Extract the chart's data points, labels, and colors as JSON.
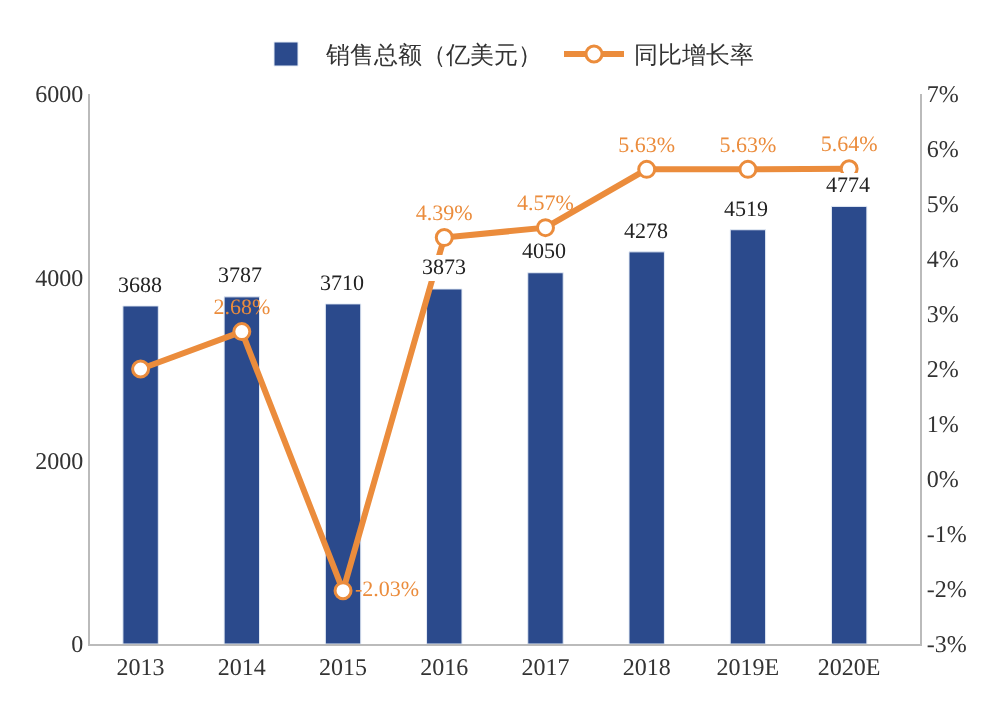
{
  "chart_data": {
    "type": "bar",
    "categories": [
      "2013",
      "2014",
      "2015",
      "2016",
      "2017",
      "2018",
      "2019E",
      "2020E"
    ],
    "series": [
      {
        "name": "销售总额（亿美元）",
        "color": "#2b4a8c",
        "values": [
          3688,
          3787,
          3710,
          3873,
          4050,
          4278,
          4519,
          4774
        ],
        "value_labels": [
          "3688",
          "3787",
          "3710",
          "3873",
          "4050",
          "4278",
          "4519",
          "4774"
        ]
      },
      {
        "name": "同比增长率",
        "type": "line",
        "axis": "y2",
        "color": "#eb8c3c",
        "marker": "circle",
        "values": [
          2.0,
          2.68,
          -2.03,
          4.39,
          4.57,
          5.63,
          5.63,
          5.64
        ],
        "value_labels": [
          null,
          "2.68%",
          "-2.03%",
          "4.39%",
          "4.57%",
          "5.63%",
          "5.63%",
          "5.64%"
        ]
      }
    ],
    "ylim": [
      0,
      6000
    ],
    "yticks": [
      0,
      2000,
      4000,
      6000
    ],
    "y2lim": [
      -3,
      7
    ],
    "y2ticks": [
      {
        "value": -3,
        "label": "-3%"
      },
      {
        "value": -2,
        "label": "-2%"
      },
      {
        "value": -1,
        "label": "-1%"
      },
      {
        "value": 0,
        "label": "0%"
      },
      {
        "value": 1,
        "label": "1%"
      },
      {
        "value": 2,
        "label": "2%"
      },
      {
        "value": 3,
        "label": "3%"
      },
      {
        "value": 4,
        "label": "4%"
      },
      {
        "value": 5,
        "label": "5%"
      },
      {
        "value": 6,
        "label": "6%"
      },
      {
        "value": 7,
        "label": "7%"
      }
    ],
    "legend": "top"
  }
}
